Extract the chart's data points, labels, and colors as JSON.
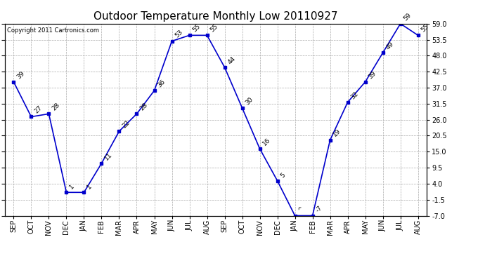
{
  "title": "Outdoor Temperature Monthly Low 20110927",
  "copyright": "Copyright 2011 Cartronics.com",
  "months": [
    "SEP",
    "OCT",
    "NOV",
    "DEC",
    "JAN",
    "FEB",
    "MAR",
    "APR",
    "MAY",
    "JUN",
    "JUL",
    "AUG",
    "SEP",
    "OCT",
    "NOV",
    "DEC",
    "JAN",
    "FEB",
    "MAR",
    "APR",
    "MAY",
    "JUN",
    "JUL",
    "AUG"
  ],
  "values": [
    39,
    27,
    28,
    1,
    1,
    11,
    22,
    28,
    36,
    53,
    55,
    55,
    44,
    30,
    16,
    5,
    -7,
    -7,
    19,
    32,
    39,
    49,
    59,
    55
  ],
  "annotations": [
    "39",
    "27",
    "28",
    "1",
    "1",
    "11",
    "22",
    "28",
    "36",
    "53",
    "55",
    "55",
    "44",
    "30",
    "16",
    "5",
    "^",
    "-7",
    "19",
    "32",
    "39",
    "49",
    "59",
    "55"
  ],
  "line_color": "#0000cc",
  "marker_color": "#0000cc",
  "bg_color": "#ffffff",
  "grid_color": "#aaaaaa",
  "ylim": [
    -7.0,
    59.0
  ],
  "yticks": [
    -7.0,
    -1.5,
    4.0,
    9.5,
    15.0,
    20.5,
    26.0,
    31.5,
    37.0,
    42.5,
    48.0,
    53.5,
    59.0
  ],
  "title_fontsize": 11,
  "annotation_fontsize": 6.5,
  "copyright_fontsize": 6,
  "tick_fontsize": 7
}
